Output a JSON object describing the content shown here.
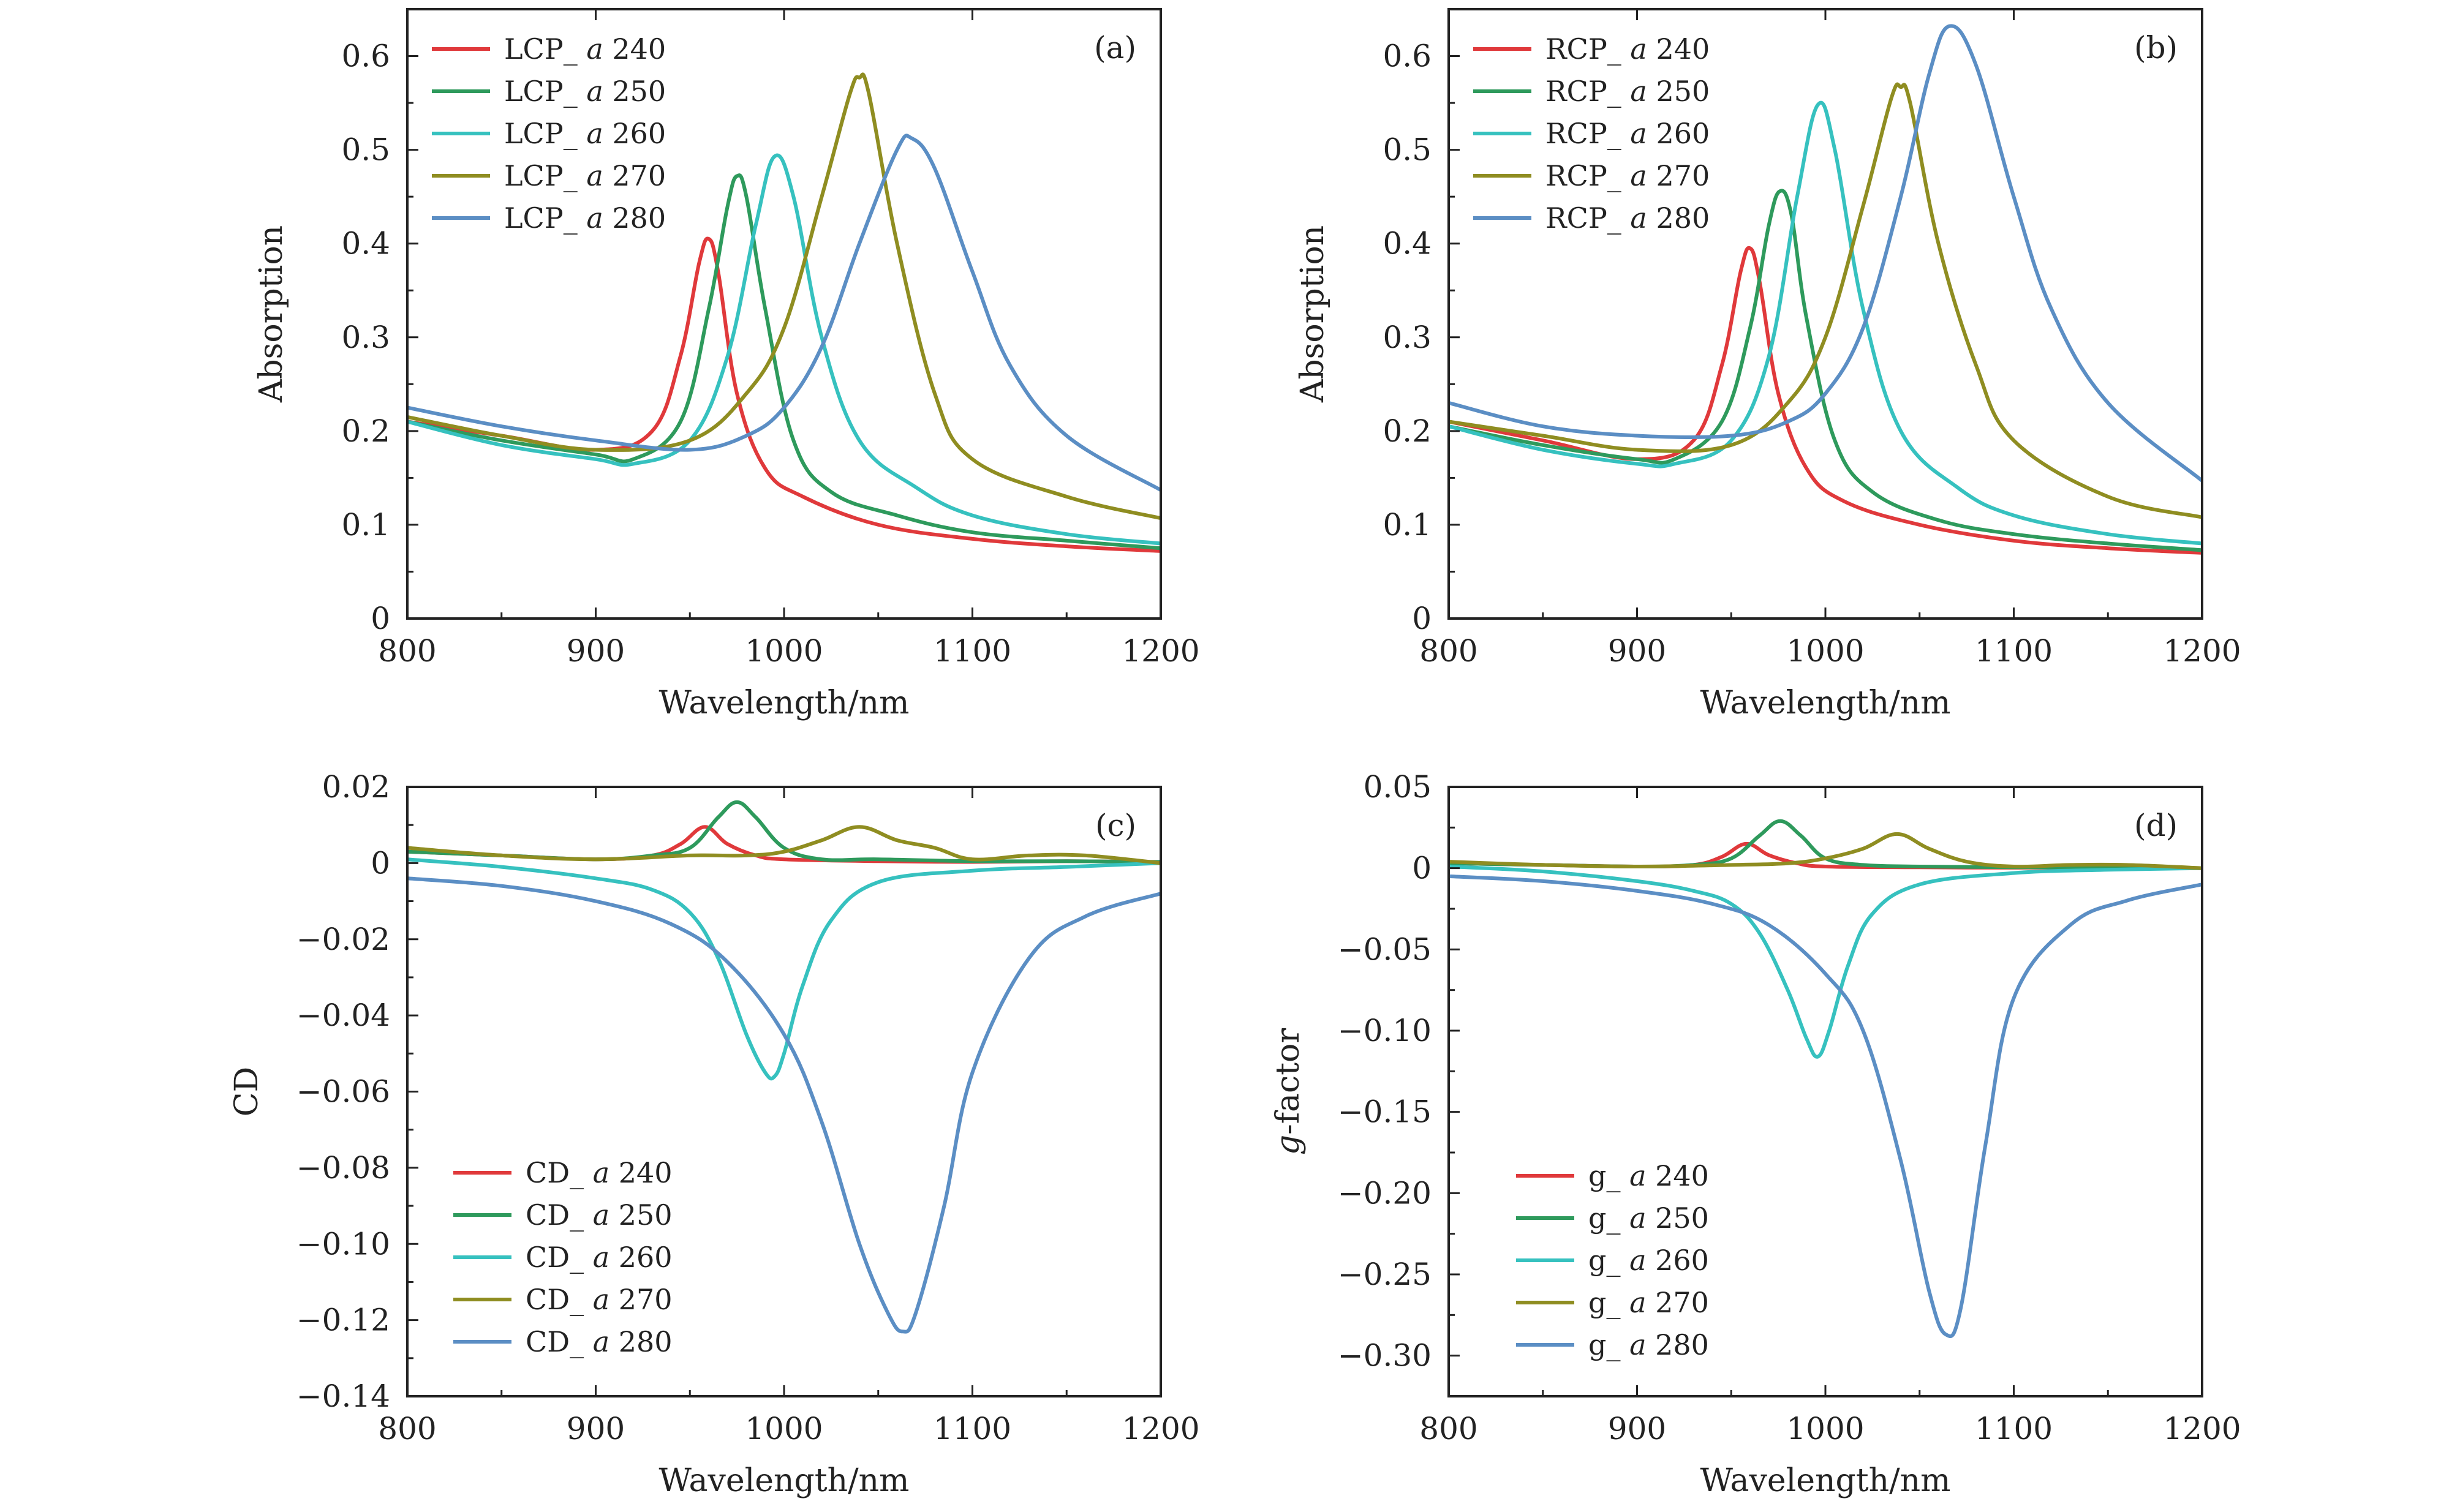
{
  "figure": {
    "colors": {
      "240": "#e0393b",
      "250": "#2e9a5c",
      "260": "#36c1bf",
      "270": "#8f8d21",
      "280": "#5b8ec4"
    }
  },
  "chart_data": [
    {
      "id": "a",
      "type": "line",
      "panel_label": "(a)",
      "xlabel": "Wavelength/nm",
      "ylabel": "Absorption",
      "xlim": [
        800,
        1200
      ],
      "ylim": [
        0,
        0.65
      ],
      "xticks": [
        800,
        900,
        1000,
        1100,
        1200
      ],
      "xtick_labels": [
        "800",
        "900",
        "1000",
        "1100",
        "1200"
      ],
      "yticks": [
        0,
        0.1,
        0.2,
        0.3,
        0.4,
        0.5,
        0.6
      ],
      "ytick_labels": [
        "0",
        "0.1",
        "0.2",
        "0.3",
        "0.4",
        "0.5",
        "0.6"
      ],
      "legend_position": "top-left",
      "series": [
        {
          "key": "240",
          "prefix": "LCP_",
          "name": "240",
          "x": [
            800,
            850,
            900,
            930,
            945,
            955,
            960,
            965,
            975,
            990,
            1010,
            1050,
            1100,
            1150,
            1200
          ],
          "y": [
            0.21,
            0.195,
            0.18,
            0.2,
            0.28,
            0.38,
            0.405,
            0.37,
            0.24,
            0.16,
            0.13,
            0.1,
            0.085,
            0.077,
            0.072
          ]
        },
        {
          "key": "250",
          "prefix": "LCP_",
          "name": "250",
          "x": [
            800,
            850,
            900,
            920,
            945,
            960,
            970,
            975,
            980,
            990,
            1005,
            1025,
            1060,
            1100,
            1150,
            1200
          ],
          "y": [
            0.21,
            0.19,
            0.175,
            0.17,
            0.21,
            0.33,
            0.44,
            0.472,
            0.45,
            0.33,
            0.19,
            0.135,
            0.11,
            0.092,
            0.083,
            0.075
          ]
        },
        {
          "key": "260",
          "prefix": "LCP_",
          "name": "260",
          "x": [
            800,
            850,
            900,
            920,
            950,
            970,
            985,
            995,
            1005,
            1020,
            1040,
            1070,
            1100,
            1150,
            1200
          ],
          "y": [
            0.21,
            0.185,
            0.17,
            0.165,
            0.19,
            0.28,
            0.42,
            0.493,
            0.45,
            0.3,
            0.19,
            0.14,
            0.11,
            0.09,
            0.08
          ]
        },
        {
          "key": "270",
          "prefix": "LCP_",
          "name": "270",
          "x": [
            800,
            850,
            900,
            950,
            980,
            1000,
            1020,
            1035,
            1040,
            1045,
            1060,
            1080,
            1100,
            1150,
            1200
          ],
          "y": [
            0.215,
            0.195,
            0.18,
            0.19,
            0.24,
            0.31,
            0.45,
            0.56,
            0.577,
            0.56,
            0.4,
            0.24,
            0.17,
            0.13,
            0.107
          ]
        },
        {
          "key": "280",
          "prefix": "LCP_",
          "name": "280",
          "x": [
            800,
            850,
            900,
            950,
            980,
            1000,
            1020,
            1040,
            1060,
            1068,
            1080,
            1100,
            1120,
            1150,
            1200
          ],
          "y": [
            0.225,
            0.205,
            0.19,
            0.18,
            0.195,
            0.225,
            0.29,
            0.4,
            0.5,
            0.512,
            0.48,
            0.37,
            0.27,
            0.195,
            0.137
          ]
        }
      ]
    },
    {
      "id": "b",
      "type": "line",
      "panel_label": "(b)",
      "xlabel": "Wavelength/nm",
      "ylabel": "Absorption",
      "xlim": [
        800,
        1200
      ],
      "ylim": [
        0,
        0.65
      ],
      "xticks": [
        800,
        900,
        1000,
        1100,
        1200
      ],
      "xtick_labels": [
        "800",
        "900",
        "1000",
        "1100",
        "1200"
      ],
      "yticks": [
        0,
        0.1,
        0.2,
        0.3,
        0.4,
        0.5,
        0.6
      ],
      "ytick_labels": [
        "0",
        "0.1",
        "0.2",
        "0.3",
        "0.4",
        "0.5",
        "0.6"
      ],
      "legend_position": "top-left",
      "series": [
        {
          "key": "240",
          "prefix": "RCP_",
          "name": "240",
          "x": [
            800,
            850,
            900,
            930,
            945,
            955,
            960,
            965,
            975,
            990,
            1010,
            1050,
            1100,
            1150,
            1200
          ],
          "y": [
            0.21,
            0.19,
            0.17,
            0.19,
            0.27,
            0.37,
            0.395,
            0.36,
            0.24,
            0.16,
            0.125,
            0.1,
            0.083,
            0.075,
            0.07
          ]
        },
        {
          "key": "250",
          "prefix": "RCP_",
          "name": "250",
          "x": [
            800,
            850,
            900,
            920,
            945,
            960,
            970,
            976,
            982,
            990,
            1005,
            1025,
            1060,
            1100,
            1150,
            1200
          ],
          "y": [
            0.205,
            0.185,
            0.17,
            0.17,
            0.21,
            0.31,
            0.42,
            0.456,
            0.43,
            0.32,
            0.19,
            0.135,
            0.105,
            0.09,
            0.08,
            0.073
          ]
        },
        {
          "key": "260",
          "prefix": "RCP_",
          "name": "260",
          "x": [
            800,
            850,
            900,
            920,
            950,
            970,
            985,
            996,
            1005,
            1020,
            1040,
            1070,
            1100,
            1150,
            1200
          ],
          "y": [
            0.205,
            0.18,
            0.165,
            0.165,
            0.19,
            0.28,
            0.45,
            0.548,
            0.5,
            0.33,
            0.2,
            0.14,
            0.11,
            0.09,
            0.08
          ]
        },
        {
          "key": "270",
          "prefix": "RCP_",
          "name": "270",
          "x": [
            800,
            850,
            900,
            950,
            980,
            1000,
            1020,
            1035,
            1040,
            1045,
            1060,
            1080,
            1100,
            1150,
            1200
          ],
          "y": [
            0.21,
            0.195,
            0.18,
            0.185,
            0.23,
            0.3,
            0.44,
            0.555,
            0.567,
            0.55,
            0.4,
            0.27,
            0.19,
            0.13,
            0.108
          ]
        },
        {
          "key": "280",
          "prefix": "RCP_",
          "name": "280",
          "x": [
            800,
            850,
            900,
            950,
            980,
            1000,
            1020,
            1040,
            1055,
            1066,
            1080,
            1100,
            1120,
            1150,
            1200
          ],
          "y": [
            0.23,
            0.205,
            0.195,
            0.195,
            0.21,
            0.24,
            0.31,
            0.45,
            0.58,
            0.632,
            0.59,
            0.45,
            0.33,
            0.23,
            0.147
          ]
        }
      ]
    },
    {
      "id": "c",
      "type": "line",
      "panel_label": "(c)",
      "xlabel": "Wavelength/nm",
      "ylabel": "CD",
      "xlim": [
        800,
        1200
      ],
      "ylim": [
        -0.14,
        0.02
      ],
      "xticks": [
        800,
        900,
        1000,
        1100,
        1200
      ],
      "xtick_labels": [
        "800",
        "900",
        "1000",
        "1100",
        "1200"
      ],
      "yticks": [
        0.02,
        0,
        -0.02,
        -0.04,
        -0.06,
        -0.08,
        -0.1,
        -0.12,
        -0.14
      ],
      "ytick_labels": [
        "0.02",
        "0",
        "−0.02",
        "−0.04",
        "−0.06",
        "−0.08",
        "−0.10",
        "−0.12",
        "−0.14"
      ],
      "legend_position": "bottom-left",
      "series": [
        {
          "key": "240",
          "prefix": "CD_",
          "name": "240",
          "x": [
            800,
            850,
            900,
            930,
            945,
            958,
            970,
            985,
            1000,
            1050,
            1100,
            1150,
            1200
          ],
          "y": [
            0.003,
            0.002,
            0.001,
            0.002,
            0.005,
            0.0095,
            0.005,
            0.002,
            0.001,
            0.0005,
            0.0003,
            0.0005,
            0.0003
          ]
        },
        {
          "key": "250",
          "prefix": "CD_",
          "name": "250",
          "x": [
            800,
            850,
            900,
            930,
            950,
            965,
            975,
            985,
            1000,
            1020,
            1050,
            1100,
            1150,
            1200
          ],
          "y": [
            0.003,
            0.002,
            0.001,
            0.002,
            0.004,
            0.012,
            0.016,
            0.012,
            0.004,
            0.001,
            0.001,
            0.0005,
            0.0005,
            0.0003
          ]
        },
        {
          "key": "260",
          "prefix": "CD_",
          "name": "260",
          "x": [
            800,
            850,
            900,
            930,
            950,
            965,
            980,
            990,
            995,
            1000,
            1010,
            1025,
            1050,
            1100,
            1150,
            1200
          ],
          "y": [
            0.001,
            -0.001,
            -0.004,
            -0.007,
            -0.013,
            -0.025,
            -0.045,
            -0.055,
            -0.056,
            -0.05,
            -0.032,
            -0.015,
            -0.005,
            -0.002,
            -0.001,
            0
          ]
        },
        {
          "key": "270",
          "prefix": "CD_",
          "name": "270",
          "x": [
            800,
            850,
            900,
            950,
            980,
            1000,
            1020,
            1040,
            1060,
            1080,
            1100,
            1130,
            1160,
            1200
          ],
          "y": [
            0.004,
            0.002,
            0.001,
            0.002,
            0.002,
            0.003,
            0.006,
            0.0095,
            0.006,
            0.004,
            0.001,
            0.002,
            0.002,
            0
          ]
        },
        {
          "key": "280",
          "prefix": "CD_",
          "name": "280",
          "x": [
            800,
            850,
            900,
            940,
            970,
            1000,
            1020,
            1040,
            1055,
            1063,
            1070,
            1085,
            1100,
            1130,
            1160,
            1200
          ],
          "y": [
            -0.004,
            -0.006,
            -0.01,
            -0.016,
            -0.026,
            -0.045,
            -0.068,
            -0.1,
            -0.118,
            -0.123,
            -0.118,
            -0.09,
            -0.055,
            -0.025,
            -0.014,
            -0.008
          ]
        }
      ]
    },
    {
      "id": "d",
      "type": "line",
      "panel_label": "(d)",
      "xlabel": "Wavelength/nm",
      "ylabel_italic": "g",
      "ylabel_rest": "-factor",
      "xlim": [
        800,
        1200
      ],
      "ylim": [
        -0.325,
        0.05
      ],
      "xticks": [
        800,
        900,
        1000,
        1100,
        1200
      ],
      "xtick_labels": [
        "800",
        "900",
        "1000",
        "1100",
        "1200"
      ],
      "yticks": [
        0.05,
        0,
        -0.05,
        -0.1,
        -0.15,
        -0.2,
        -0.25,
        -0.3
      ],
      "ytick_labels": [
        "0.05",
        "0",
        "−0.05",
        "−0.10",
        "−0.15",
        "−0.20",
        "−0.25",
        "−0.30"
      ],
      "legend_position": "bottom-left",
      "series": [
        {
          "key": "240",
          "prefix": "g_",
          "name": "240",
          "x": [
            800,
            850,
            900,
            930,
            945,
            958,
            970,
            985,
            1000,
            1050,
            1100,
            1150,
            1200
          ],
          "y": [
            0.003,
            0.002,
            0.001,
            0.002,
            0.007,
            0.015,
            0.008,
            0.003,
            0.001,
            0.0005,
            0.0003,
            0.0005,
            0
          ]
        },
        {
          "key": "250",
          "prefix": "g_",
          "name": "250",
          "x": [
            800,
            850,
            900,
            930,
            950,
            965,
            976,
            987,
            1000,
            1020,
            1050,
            1100,
            1150,
            1200
          ],
          "y": [
            0.003,
            0.002,
            0.001,
            0.002,
            0.006,
            0.02,
            0.029,
            0.02,
            0.006,
            0.002,
            0.001,
            0.0005,
            0.0005,
            0
          ]
        },
        {
          "key": "260",
          "prefix": "g_",
          "name": "260",
          "x": [
            800,
            850,
            900,
            930,
            950,
            965,
            980,
            990,
            996,
            1002,
            1012,
            1025,
            1050,
            1100,
            1150,
            1200
          ],
          "y": [
            0.001,
            -0.002,
            -0.008,
            -0.014,
            -0.022,
            -0.04,
            -0.075,
            -0.105,
            -0.116,
            -0.1,
            -0.06,
            -0.028,
            -0.01,
            -0.003,
            -0.001,
            0
          ]
        },
        {
          "key": "270",
          "prefix": "g_",
          "name": "270",
          "x": [
            800,
            850,
            900,
            950,
            980,
            1000,
            1020,
            1038,
            1055,
            1075,
            1100,
            1130,
            1160,
            1200
          ],
          "y": [
            0.004,
            0.002,
            0.001,
            0.002,
            0.003,
            0.006,
            0.012,
            0.021,
            0.012,
            0.004,
            0.001,
            0.002,
            0.002,
            0
          ]
        },
        {
          "key": "280",
          "prefix": "g_",
          "name": "280",
          "x": [
            800,
            850,
            900,
            940,
            970,
            1000,
            1020,
            1040,
            1055,
            1064,
            1072,
            1085,
            1100,
            1130,
            1160,
            1200
          ],
          "y": [
            -0.005,
            -0.008,
            -0.014,
            -0.022,
            -0.035,
            -0.065,
            -0.1,
            -0.18,
            -0.26,
            -0.287,
            -0.27,
            -0.17,
            -0.08,
            -0.035,
            -0.02,
            -0.01
          ]
        }
      ]
    }
  ]
}
